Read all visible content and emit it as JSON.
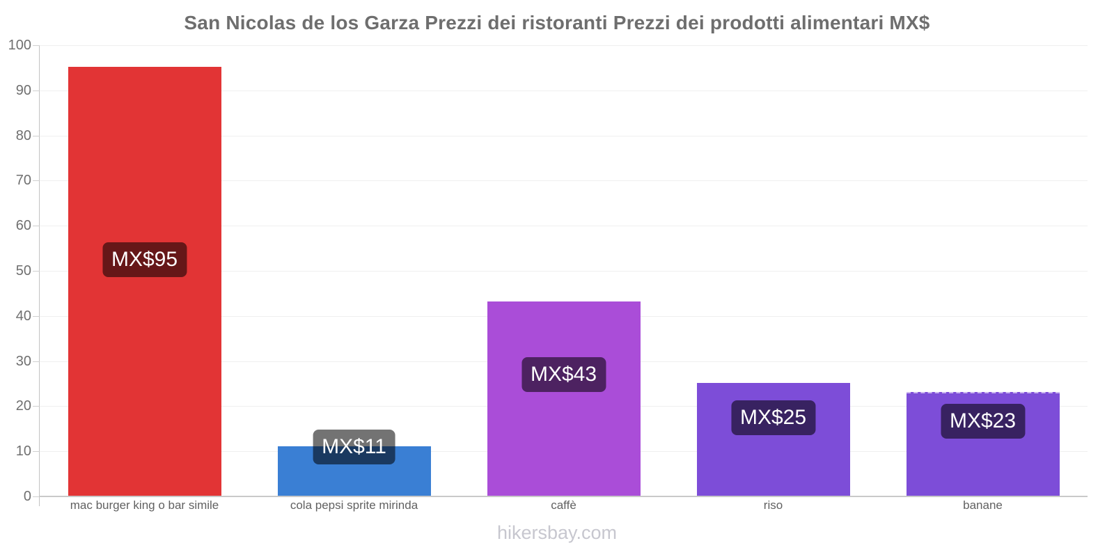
{
  "title": "San Nicolas de los Garza Prezzi dei ristoranti Prezzi dei prodotti alimentari MX$",
  "footer": "hikersbay.com",
  "chart_data": {
    "type": "bar",
    "title": "San Nicolas de los Garza Prezzi dei ristoranti Prezzi dei prodotti alimentari MX$",
    "categories": [
      "mac burger king o bar simile",
      "cola pepsi sprite mirinda",
      "caffè",
      "riso",
      "banane"
    ],
    "values": [
      95,
      11,
      43,
      25,
      23
    ],
    "data_labels": [
      "MX$95",
      "MX$11",
      "MX$43",
      "MX$25",
      "MX$23"
    ],
    "currency_prefix": "MX$",
    "bar_colors": [
      "#e23435",
      "#3a7fd4",
      "#aa4dd8",
      "#7d4dd8",
      "#7d4dd8"
    ],
    "badge_bg": "rgba(0,0,0,0.55)",
    "badge_text_color": "#ffffff",
    "label_y": [
      52.5,
      10.9,
      27,
      17.4,
      16.7
    ],
    "dashed_top": [
      false,
      false,
      false,
      false,
      true
    ],
    "xlabel": "",
    "ylabel": "",
    "ylim": [
      0,
      100
    ],
    "yticks": [
      0,
      10,
      20,
      30,
      40,
      50,
      60,
      70,
      80,
      90,
      100
    ],
    "grid": "horizontal",
    "legend": "none",
    "watermark": "hikersbay.com"
  }
}
